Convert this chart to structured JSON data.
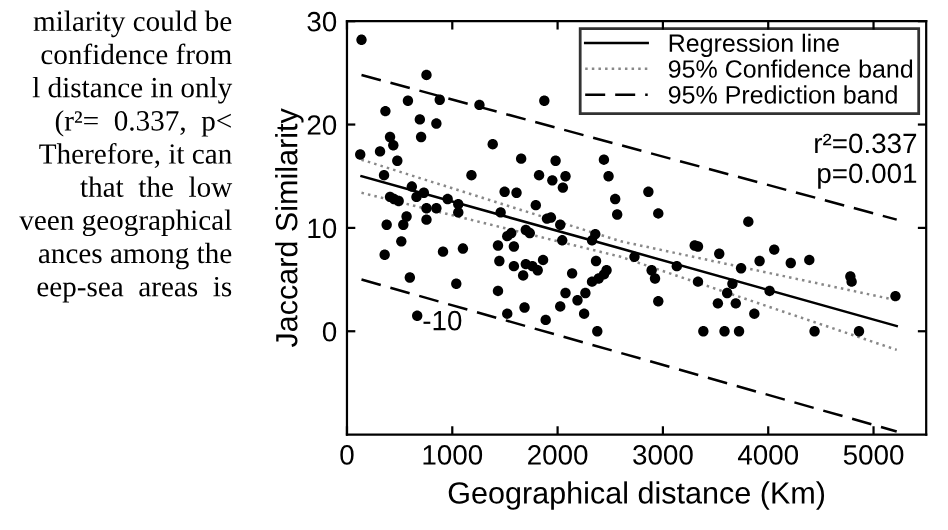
{
  "chart_data": {
    "type": "scatter",
    "xlabel": "Geographical distance (Km)",
    "ylabel": "Jaccard Similarity",
    "xlim": [
      0,
      5500
    ],
    "ylim": [
      -10,
      30
    ],
    "xticks": [
      0,
      1000,
      2000,
      3000,
      4000,
      5000
    ],
    "yticks": [
      0,
      10,
      20,
      30
    ],
    "grid": false,
    "legend": "top right",
    "annotations": [
      "-10",
      "r²=0.337\np=0.001",
      "milarity could be\nconfidence from\nl distance in only\n(r²=  0.337,  p<\nTherefore, it can\nthat  the  low\nveen geographical\nances among the\neep-sea  areas  is"
    ],
    "series": [
      {
        "color": "#000000",
        "marker": "circle",
        "x": [
          138,
          126,
          314,
          365,
          409,
          440,
          478,
          352,
          377,
          358,
          409,
          447,
          491,
          579,
          692,
          704,
          755,
          849,
          881,
          616,
          660,
          730,
          755,
          755,
          849,
          956,
          1057,
          1057,
          535,
          566,
          516,
          597,
          667,
          912,
          1038,
          1101,
          1182,
          1258,
          1384,
          1434,
          1434,
          1447,
          1459,
          1497,
          1522,
          1560,
          1522,
          1585,
          1585,
          1610,
          1654,
          1673,
          1686,
          1698,
          1736,
          1698,
          1761,
          1793,
          1824,
          1811,
          1862,
          1874,
          1887,
          1899,
          1937,
          1950,
          1981,
          2025,
          2050,
          2075,
          2044,
          2025,
          2075,
          2138,
          2189,
          2252,
          2264,
          2327,
          2327,
          2358,
          2365,
          2377,
          2390,
          2440,
          2465,
          2440,
          2484,
          2547,
          2566,
          2730,
          2862,
          2893,
          2925,
          2956,
          2956,
          3132,
          3302,
          3333,
          3333,
          3384,
          3535,
          3522,
          3585,
          3610,
          3660,
          3692,
          3723,
          3742,
          3918,
          3868,
          3811,
          4013,
          4057,
          4214,
          4390,
          4440,
          4780,
          4792,
          4862,
          5208
        ],
        "values": [
          28.2,
          17.1,
          17.4,
          21.3,
          18.8,
          18.0,
          16.5,
          15.1,
          10.3,
          7.4,
          13.0,
          12.8,
          12.6,
          22.3,
          20.5,
          18.8,
          24.8,
          20.1,
          22.4,
          14.0,
          13.0,
          13.4,
          11.9,
          10.8,
          11.9,
          12.8,
          12.3,
          11.5,
          10.3,
          11.1,
          8.7,
          5.2,
          1.5,
          7.7,
          4.6,
          8.0,
          15.1,
          21.9,
          18.1,
          8.3,
          3.9,
          6.8,
          11.5,
          13.5,
          9.2,
          9.5,
          1.7,
          8.2,
          6.3,
          13.4,
          16.7,
          5.4,
          2.3,
          9.8,
          9.5,
          6.5,
          6.3,
          12.2,
          15.1,
          5.9,
          6.9,
          22.3,
          1.1,
          10.9,
          11.0,
          14.6,
          16.5,
          10.3,
          13.9,
          15.0,
          8.8,
          2.4,
          3.7,
          5.6,
          3.0,
          1.7,
          3.7,
          8.8,
          4.8,
          9.4,
          6.8,
          0.0,
          5.1,
          5.5,
          5.9,
          16.6,
          15.0,
          12.8,
          11.3,
          7.2,
          13.5,
          5.9,
          5.1,
          11.4,
          2.9,
          6.3,
          8.3,
          8.2,
          4.8,
          0.0,
          7.5,
          2.7,
          0.0,
          3.7,
          4.6,
          2.7,
          0.0,
          6.1,
          6.8,
          1.7,
          10.6,
          3.9,
          7.9,
          6.6,
          6.9,
          0.0,
          5.3,
          4.8,
          0.0,
          3.4
        ]
      },
      {
        "type": "line",
        "name": "Regression line",
        "color": "#000000",
        "line_style": "solid",
        "x": [
          138,
          2600,
          5220
        ],
        "values": [
          15.0,
          8.0,
          0.5
        ]
      },
      {
        "type": "line",
        "name": "95% Confidence band",
        "color": "#888888",
        "line_style": "dotted",
        "x": [
          138,
          2600,
          5220
        ],
        "values": [
          16.6,
          8.7,
          3.0
        ]
      },
      {
        "type": "line",
        "color": "#888888",
        "line_style": "dotted",
        "x": [
          138,
          2600,
          5220
        ],
        "values": [
          13.4,
          7.2,
          -1.8
        ]
      },
      {
        "type": "line",
        "name": "95% Prediction band",
        "color": "#000000",
        "line_style": "dashed",
        "x": [
          138,
          2600,
          5220
        ],
        "values": [
          24.8,
          18.0,
          10.8
        ]
      },
      {
        "type": "line",
        "color": "#000000",
        "line_style": "dashed",
        "x": [
          138,
          2600,
          5220
        ],
        "values": [
          5.0,
          -2.1,
          -9.7
        ]
      }
    ]
  }
}
